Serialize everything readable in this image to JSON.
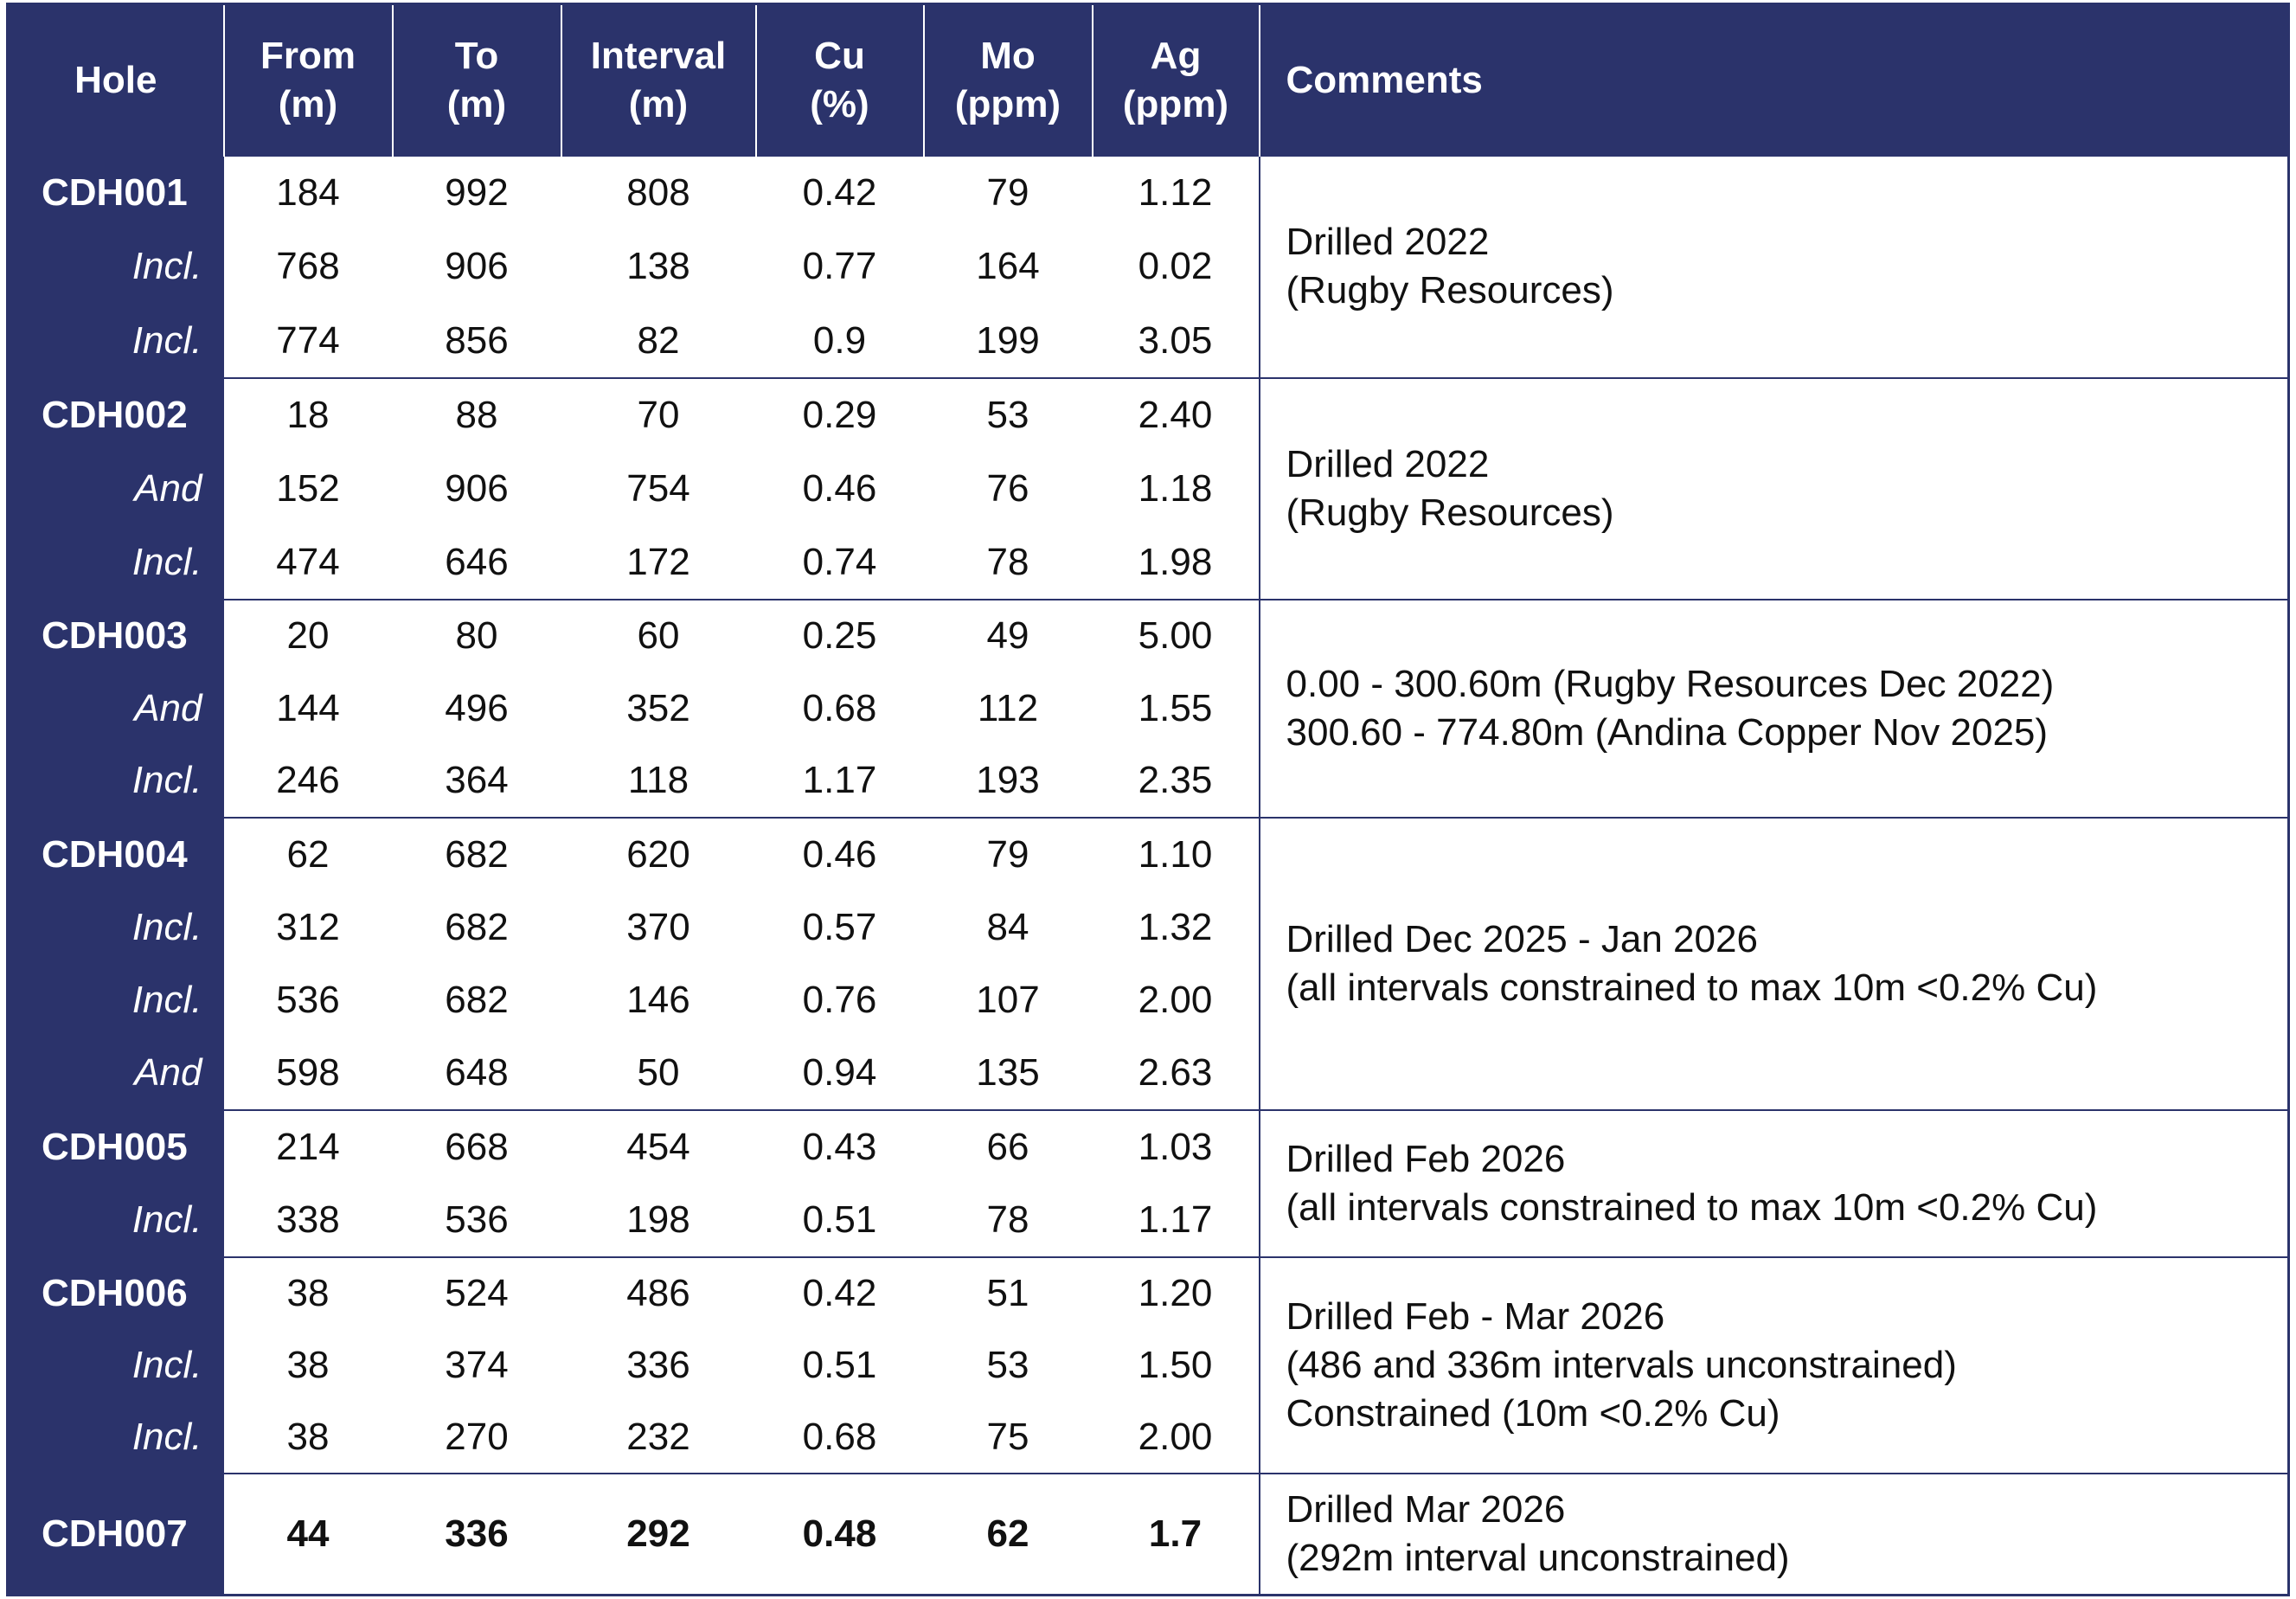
{
  "header": {
    "columns": [
      [
        "Hole"
      ],
      [
        "From",
        "(m)"
      ],
      [
        "To",
        "(m)"
      ],
      [
        "Interval",
        "(m)"
      ],
      [
        "Cu",
        "(%)"
      ],
      [
        "Mo",
        "(ppm)"
      ],
      [
        "Ag",
        "(ppm)"
      ],
      [
        "Comments"
      ]
    ]
  },
  "groups": [
    {
      "hole": "CDH001",
      "rows": [
        {
          "values": [
            "184",
            "992",
            "808",
            "0.42",
            "79",
            "1.12"
          ]
        },
        {
          "label": "Incl.",
          "values": [
            "768",
            "906",
            "138",
            "0.77",
            "164",
            "0.02"
          ]
        },
        {
          "label": "Incl.",
          "values": [
            "774",
            "856",
            "82",
            "0.9",
            "199",
            "3.05"
          ]
        }
      ],
      "comment": [
        "Drilled 2022",
        "(Rugby Resources)"
      ]
    },
    {
      "hole": "CDH002",
      "rows": [
        {
          "values": [
            "18",
            "88",
            "70",
            "0.29",
            "53",
            "2.40"
          ]
        },
        {
          "label": "And",
          "values": [
            "152",
            "906",
            "754",
            "0.46",
            "76",
            "1.18"
          ]
        },
        {
          "label": "Incl.",
          "values": [
            "474",
            "646",
            "172",
            "0.74",
            "78",
            "1.98"
          ]
        }
      ],
      "comment": [
        "Drilled 2022",
        "(Rugby Resources)"
      ]
    },
    {
      "hole": "CDH003",
      "rows": [
        {
          "values": [
            "20",
            "80",
            "60",
            "0.25",
            "49",
            "5.00"
          ]
        },
        {
          "label": "And",
          "values": [
            "144",
            "496",
            "352",
            "0.68",
            "112",
            "1.55"
          ]
        },
        {
          "label": "Incl.",
          "values": [
            "246",
            "364",
            "118",
            "1.17",
            "193",
            "2.35"
          ]
        }
      ],
      "comment": [
        "0.00 - 300.60m (Rugby Resources Dec 2022)",
        "300.60 - 774.80m (Andina Copper Nov 2025)"
      ]
    },
    {
      "hole": "CDH004",
      "rows": [
        {
          "values": [
            "62",
            "682",
            "620",
            "0.46",
            "79",
            "1.10"
          ]
        },
        {
          "label": "Incl.",
          "values": [
            "312",
            "682",
            "370",
            "0.57",
            "84",
            "1.32"
          ]
        },
        {
          "label": "Incl.",
          "values": [
            "536",
            "682",
            "146",
            "0.76",
            "107",
            "2.00"
          ]
        },
        {
          "label": "And",
          "values": [
            "598",
            "648",
            "50",
            "0.94",
            "135",
            "2.63"
          ]
        }
      ],
      "comment": [
        "Drilled Dec 2025 - Jan 2026",
        "(all intervals constrained to max 10m <0.2% Cu)"
      ]
    },
    {
      "hole": "CDH005",
      "rows": [
        {
          "values": [
            "214",
            "668",
            "454",
            "0.43",
            "66",
            "1.03"
          ]
        },
        {
          "label": "Incl.",
          "values": [
            "338",
            "536",
            "198",
            "0.51",
            "78",
            "1.17"
          ]
        }
      ],
      "comment": [
        "Drilled Feb 2026",
        "(all intervals constrained to max 10m <0.2% Cu)"
      ]
    },
    {
      "hole": "CDH006",
      "rows": [
        {
          "values": [
            "38",
            "524",
            "486",
            "0.42",
            "51",
            "1.20"
          ]
        },
        {
          "label": "Incl.",
          "values": [
            "38",
            "374",
            "336",
            "0.51",
            "53",
            "1.50"
          ]
        },
        {
          "label": "Incl.",
          "values": [
            "38",
            "270",
            "232",
            "0.68",
            "75",
            "2.00"
          ]
        }
      ],
      "comment": [
        "Drilled Feb - Mar 2026",
        "(486 and 336m intervals unconstrained)",
        "Constrained (10m <0.2% Cu)"
      ]
    },
    {
      "hole": "CDH007",
      "bold": true,
      "rows": [
        {
          "values": [
            "44",
            "336",
            "292",
            "0.48",
            "62",
            "1.7"
          ]
        }
      ],
      "comment": [
        "Drilled Mar 2026",
        "(292m interval unconstrained)"
      ]
    }
  ]
}
